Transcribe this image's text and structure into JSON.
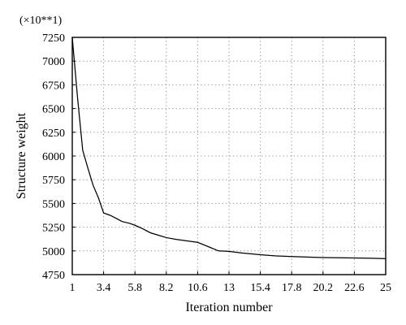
{
  "chart_data": {
    "type": "line",
    "title": "",
    "xlabel": "Iteration number",
    "ylabel": "Structure weight",
    "y_multiplier_label": "(×10**1)",
    "xlim": [
      1,
      25
    ],
    "ylim": [
      4750,
      7250
    ],
    "x_ticks": [
      1,
      3.4,
      5.8,
      8.2,
      10.6,
      13,
      15.4,
      17.8,
      20.2,
      22.6,
      25
    ],
    "x_tick_labels": [
      "1",
      "3.4",
      "5.8",
      "8.2",
      "10.6",
      "13",
      "15.4",
      "17.8",
      "20.2",
      "22.6",
      "25"
    ],
    "y_ticks": [
      4750,
      5000,
      5250,
      5500,
      5750,
      6000,
      6250,
      6500,
      6750,
      7000,
      7250
    ],
    "y_tick_labels": [
      "4750",
      "5000",
      "5250",
      "5500",
      "5750",
      "6000",
      "6250",
      "6500",
      "6750",
      "7000",
      "7250"
    ],
    "grid": true,
    "legend": "none",
    "series": [
      {
        "color": "#000000",
        "x": [
          1,
          1.4,
          1.8,
          2.2,
          2.6,
          3.0,
          3.4,
          3.9,
          4.4,
          4.8,
          5.4,
          5.8,
          6.3,
          7.0,
          7.6,
          8.2,
          9.0,
          10.6,
          11.5,
          12.2,
          13.0,
          14.0,
          15.4,
          16.5,
          17.8,
          19.0,
          20.2,
          21.5,
          22.6,
          24.0,
          25.0
        ],
        "y": [
          7250,
          6620,
          6060,
          5870,
          5690,
          5560,
          5400,
          5375,
          5340,
          5310,
          5290,
          5270,
          5240,
          5190,
          5165,
          5140,
          5120,
          5090,
          5040,
          5000,
          4995,
          4978,
          4960,
          4948,
          4940,
          4935,
          4930,
          4928,
          4925,
          4922,
          4918
        ]
      }
    ]
  }
}
